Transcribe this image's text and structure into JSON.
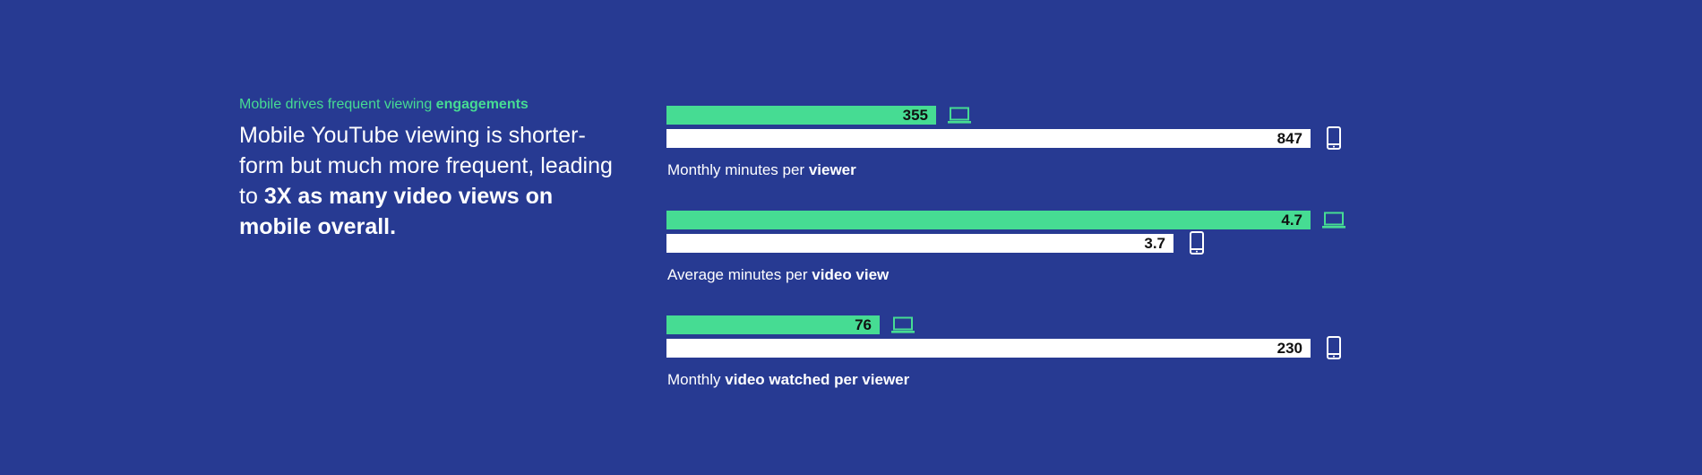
{
  "intro": {
    "eyebrow": "Mobile drives frequent viewing",
    "eyebrow_bold": "engagements",
    "headline": "Mobile YouTube viewing is shorter-form but much more frequent, leading to",
    "headline_bold": "3X as many video views on mobile overall."
  },
  "colors": {
    "background": "#273a92",
    "desktop": "#46dc93",
    "mobile": "#ffffff",
    "value_text": "#111111"
  },
  "icons": {
    "desktop": "laptop-icon",
    "mobile": "phone-icon"
  },
  "chart_data": {
    "type": "bar",
    "orientation": "horizontal",
    "series_icons": [
      "laptop-icon",
      "phone-icon"
    ],
    "groups": [
      {
        "caption": "Monthly minutes per",
        "caption_bold": "viewer",
        "desktop": {
          "value": 355,
          "label": "355"
        },
        "mobile": {
          "value": 847,
          "label": "847"
        }
      },
      {
        "caption": "Average minutes per",
        "caption_bold": "video view",
        "desktop": {
          "value": 4.7,
          "label": "4.7"
        },
        "mobile": {
          "value": 3.7,
          "label": "3.7"
        }
      },
      {
        "caption": "Monthly",
        "caption_bold": "video watched per viewer",
        "desktop": {
          "value": 76,
          "label": "76"
        },
        "mobile": {
          "value": 230,
          "label": "230"
        }
      }
    ]
  }
}
